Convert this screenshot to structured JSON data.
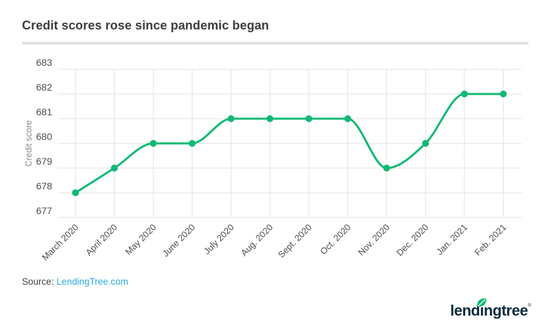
{
  "header": {
    "title": "Credit scores rose since pandemic began"
  },
  "chart_data": {
    "type": "line",
    "title": "Credit scores rose since pandemic began",
    "categories": [
      "March 2020",
      "April 2020",
      "May 2020",
      "June 2020",
      "July 2020",
      "Aug. 2020",
      "Sept. 2020",
      "Oct. 2020",
      "Nov. 2020",
      "Dec. 2020",
      "Jan. 2021",
      "Feb. 2021"
    ],
    "values": [
      678,
      679,
      680,
      680,
      681,
      681,
      681,
      681,
      679,
      680,
      682,
      682
    ],
    "xlabel": "",
    "ylabel": "Credit score",
    "ylim": [
      677,
      683
    ],
    "yticks": [
      677,
      678,
      679,
      680,
      681,
      682,
      683
    ],
    "grid": true,
    "legend": false,
    "marker": "circle"
  },
  "footer": {
    "source_label": "Source:",
    "source_link": "LendingTree.com",
    "logo_text": "lendıngtree",
    "logo_reg": "®"
  },
  "colors": {
    "line_green": "#10b973",
    "gridline": "#e2e2e2",
    "tick_label": "#4c4c4c",
    "axis_title": "#8a8a8a",
    "title_text": "#3d3d3d",
    "divider": "#e2e2e2",
    "link_blue": "#2caadf",
    "logo_navy": "#0e2b3f",
    "leaf_green": "#10b973",
    "background": "#ffffff"
  }
}
